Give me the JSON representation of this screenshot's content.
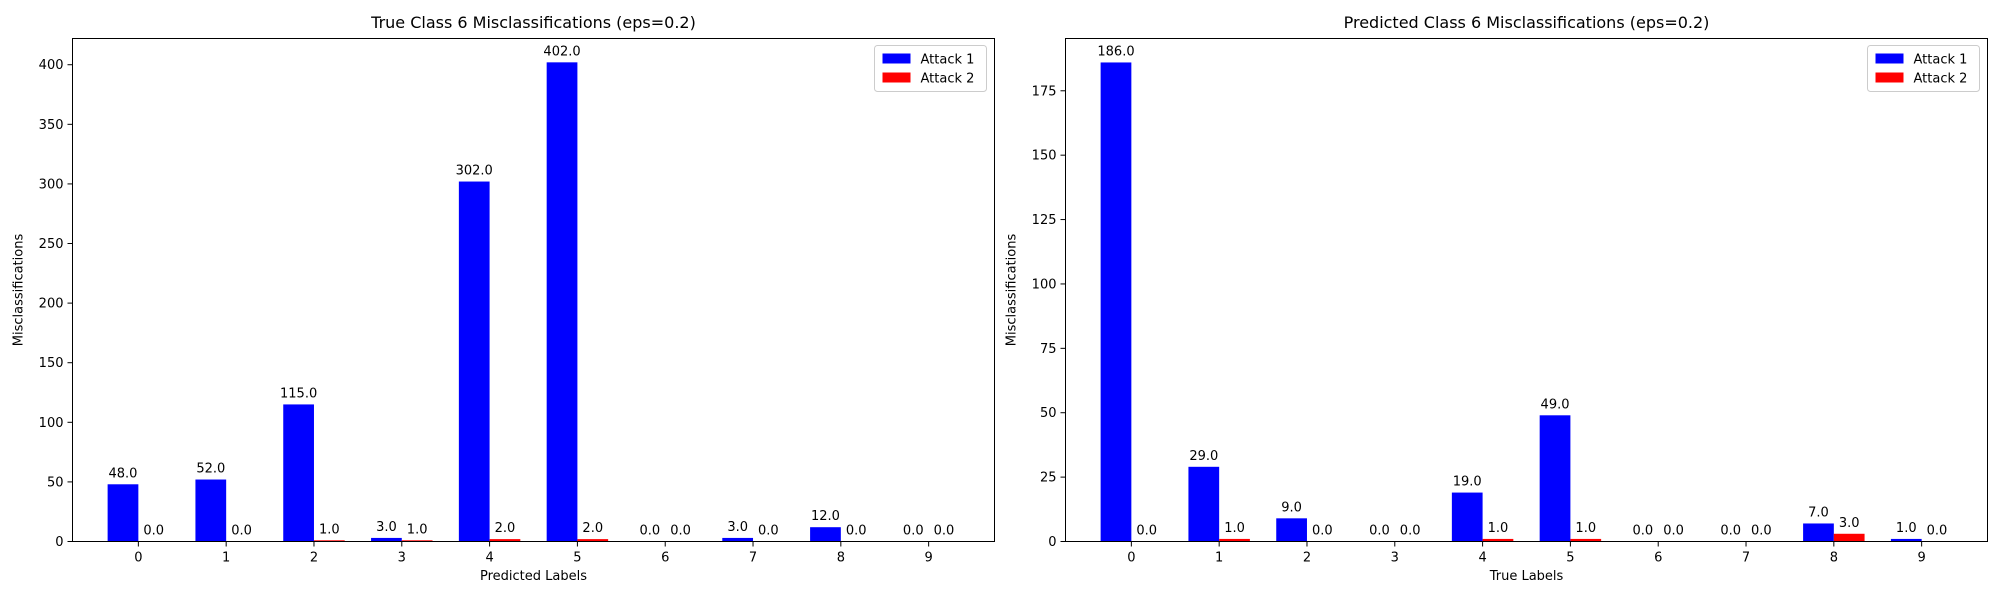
{
  "chart_data": [
    {
      "type": "bar",
      "title": "True Class 6 Misclassifications (eps=0.2)",
      "xlabel": "Predicted Labels",
      "ylabel": "Misclassifications",
      "categories": [
        "0",
        "1",
        "2",
        "3",
        "4",
        "5",
        "6",
        "7",
        "8",
        "9"
      ],
      "ylim": [
        0,
        422
      ],
      "yticks": [
        0,
        50,
        100,
        150,
        200,
        250,
        300,
        350,
        400
      ],
      "legend": "top-right",
      "grid": false,
      "series": [
        {
          "name": "Attack 1",
          "color": "#0000ff",
          "values": [
            48,
            52,
            115,
            3,
            302,
            402,
            0,
            3,
            12,
            0
          ],
          "labels": [
            "48.0",
            "52.0",
            "115.0",
            "3.0",
            "302.0",
            "402.0",
            "0.0",
            "3.0",
            "12.0",
            "0.0"
          ]
        },
        {
          "name": "Attack 2",
          "color": "#ff0000",
          "values": [
            0,
            0,
            1,
            1,
            2,
            2,
            0,
            0,
            0,
            0
          ],
          "labels": [
            "0.0",
            "0.0",
            "1.0",
            "1.0",
            "2.0",
            "2.0",
            "0.0",
            "0.0",
            "0.0",
            "0.0"
          ]
        }
      ]
    },
    {
      "type": "bar",
      "title": "Predicted Class 6 Misclassifications (eps=0.2)",
      "xlabel": "True Labels",
      "ylabel": "Misclassifications",
      "categories": [
        "0",
        "1",
        "2",
        "3",
        "4",
        "5",
        "6",
        "7",
        "8",
        "9"
      ],
      "ylim": [
        0,
        195.3
      ],
      "yticks": [
        0,
        25,
        50,
        75,
        100,
        125,
        150,
        175
      ],
      "legend": "top-right",
      "grid": false,
      "series": [
        {
          "name": "Attack 1",
          "color": "#0000ff",
          "values": [
            186,
            29,
            9,
            0,
            19,
            49,
            0,
            0,
            7,
            1
          ],
          "labels": [
            "186.0",
            "29.0",
            "9.0",
            "0.0",
            "19.0",
            "49.0",
            "0.0",
            "0.0",
            "7.0",
            "1.0"
          ]
        },
        {
          "name": "Attack 2",
          "color": "#ff0000",
          "values": [
            0,
            1,
            0,
            0,
            1,
            1,
            0,
            0,
            3,
            0
          ],
          "labels": [
            "0.0",
            "1.0",
            "0.0",
            "0.0",
            "1.0",
            "1.0",
            "0.0",
            "0.0",
            "3.0",
            "0.0"
          ]
        }
      ]
    }
  ]
}
